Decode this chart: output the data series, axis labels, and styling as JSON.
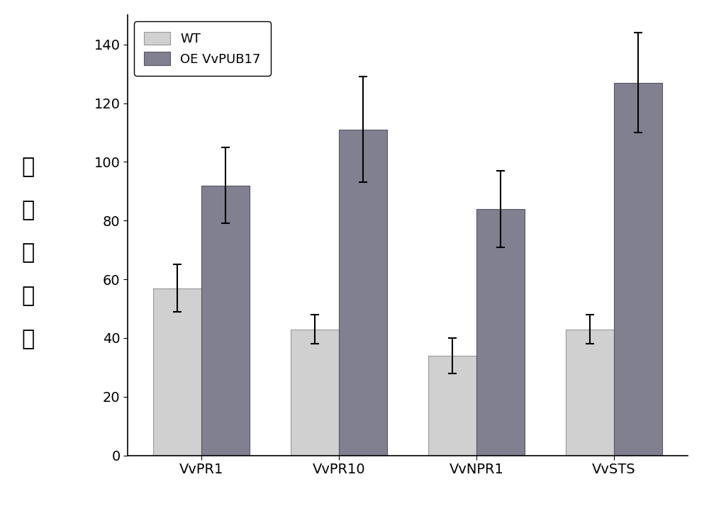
{
  "categories": [
    "VvPR1",
    "VvPR10",
    "VvNPR1",
    "VvSTS"
  ],
  "wt_values": [
    57,
    43,
    34,
    43
  ],
  "oe_values": [
    92,
    111,
    84,
    127
  ],
  "wt_errors": [
    8,
    5,
    6,
    5
  ],
  "oe_errors": [
    13,
    18,
    13,
    17
  ],
  "wt_color": "#d0d0d0",
  "oe_color": "#808090",
  "bar_width": 0.35,
  "ylim": [
    0,
    150
  ],
  "yticks": [
    0,
    20,
    40,
    60,
    80,
    100,
    120,
    140
  ],
  "ylabel_chars": [
    "相",
    "对",
    "表",
    "达",
    "量"
  ],
  "legend_wt": "WT",
  "legend_oe": "OE VvPUB17",
  "background_color": "#ffffff",
  "tick_fontsize": 14,
  "legend_fontsize": 13,
  "ylabel_fontsize": 22
}
